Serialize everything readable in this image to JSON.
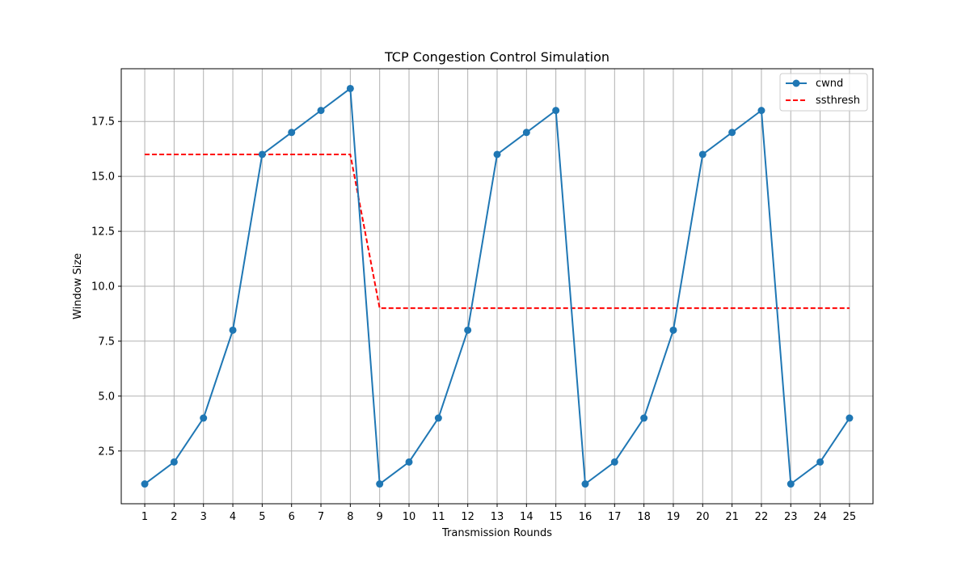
{
  "chart_data": {
    "type": "line",
    "title": "TCP Congestion Control Simulation",
    "xlabel": "Transmission Rounds",
    "ylabel": "Window Size",
    "x": [
      1,
      2,
      3,
      4,
      5,
      6,
      7,
      8,
      9,
      10,
      11,
      12,
      13,
      14,
      15,
      16,
      17,
      18,
      19,
      20,
      21,
      22,
      23,
      24,
      25
    ],
    "series": [
      {
        "name": "cwnd",
        "color": "#1f77b4",
        "style": "solid",
        "marker": "circle",
        "values": [
          1,
          2,
          4,
          8,
          16,
          17,
          18,
          19,
          1,
          2,
          4,
          8,
          16,
          17,
          18,
          1,
          2,
          4,
          8,
          16,
          17,
          18,
          1,
          2,
          4
        ]
      },
      {
        "name": "ssthresh",
        "color": "#ff0000",
        "style": "dashed",
        "marker": "none",
        "values": [
          16,
          16,
          16,
          16,
          16,
          16,
          16,
          16,
          9,
          9,
          9,
          9,
          9,
          9,
          9,
          9,
          9,
          9,
          9,
          9,
          9,
          9,
          9,
          9,
          9
        ]
      }
    ],
    "xticks": [
      "1",
      "2",
      "3",
      "4",
      "5",
      "6",
      "7",
      "8",
      "9",
      "10",
      "11",
      "12",
      "13",
      "14",
      "15",
      "16",
      "17",
      "18",
      "19",
      "20",
      "21",
      "22",
      "23",
      "24",
      "25"
    ],
    "yticks": [
      "2.5",
      "5.0",
      "7.5",
      "10.0",
      "12.5",
      "15.0",
      "17.5"
    ],
    "ylim": [
      0.1,
      19.9
    ],
    "xlim": [
      0.2,
      25.8
    ],
    "grid": true,
    "legend_position": "top-right"
  }
}
